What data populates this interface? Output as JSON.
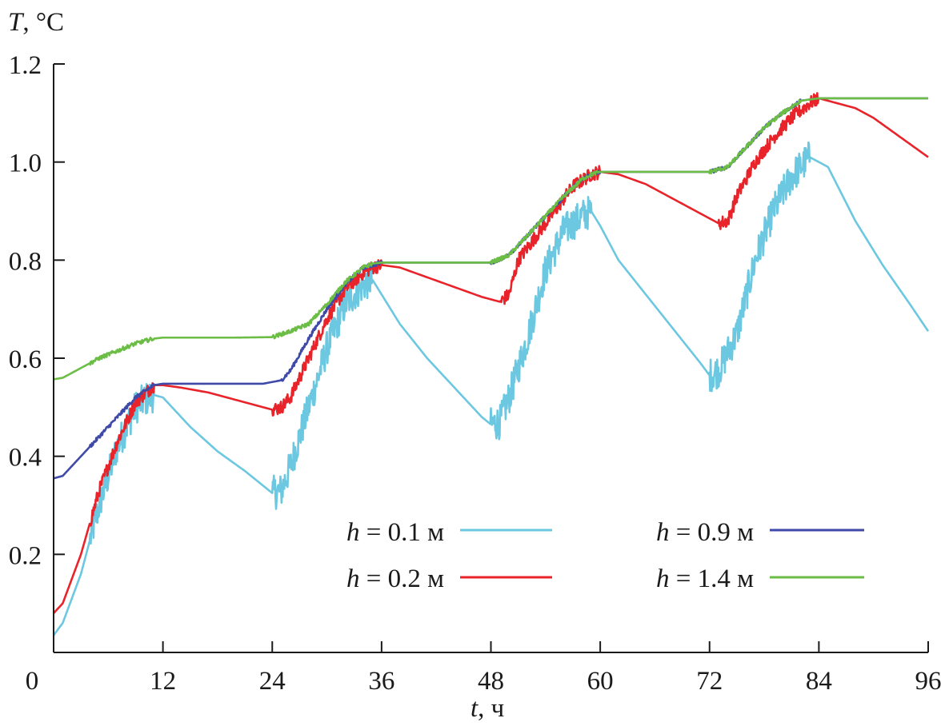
{
  "chart_data": {
    "type": "line",
    "title": "",
    "ylabel_var": "T",
    "ylabel_unit": ", °C",
    "xlabel_var": "t",
    "xlabel_unit": ", ч",
    "xlim": [
      0,
      96
    ],
    "ylim": [
      0,
      1.2
    ],
    "x_ticks": [
      0,
      12,
      24,
      36,
      48,
      60,
      72,
      84,
      96
    ],
    "x_tick_labels": [
      "0",
      "12",
      "24",
      "36",
      "48",
      "60",
      "72",
      "84",
      "96"
    ],
    "y_ticks": [
      0.2,
      0.4,
      0.6,
      0.8,
      1.0,
      1.2
    ],
    "y_tick_labels": [
      "0.2",
      "0.4",
      "0.6",
      "0.8",
      "1.0",
      "1.2"
    ],
    "grid": false,
    "legend_position": "bottom-right",
    "series": [
      {
        "name": "h = 0.1 м",
        "var": "h",
        "rest": " = 0.1 м",
        "color": "#6cc8e0",
        "noise": 0.035,
        "points": [
          [
            0,
            0.035
          ],
          [
            1,
            0.06
          ],
          [
            3,
            0.16
          ],
          [
            5,
            0.3
          ],
          [
            7,
            0.42
          ],
          [
            9,
            0.5
          ],
          [
            10,
            0.515
          ],
          [
            11,
            0.525
          ],
          [
            12,
            0.52
          ],
          [
            13,
            0.5
          ],
          [
            15,
            0.46
          ],
          [
            18,
            0.41
          ],
          [
            21,
            0.37
          ],
          [
            23,
            0.34
          ],
          [
            24,
            0.325
          ],
          [
            25,
            0.33
          ],
          [
            26,
            0.38
          ],
          [
            28,
            0.5
          ],
          [
            30,
            0.62
          ],
          [
            32,
            0.71
          ],
          [
            34,
            0.75
          ],
          [
            35,
            0.76
          ],
          [
            36,
            0.73
          ],
          [
            38,
            0.67
          ],
          [
            41,
            0.6
          ],
          [
            44,
            0.54
          ],
          [
            47,
            0.48
          ],
          [
            48,
            0.465
          ],
          [
            49,
            0.47
          ],
          [
            50,
            0.52
          ],
          [
            52,
            0.64
          ],
          [
            54,
            0.78
          ],
          [
            56,
            0.86
          ],
          [
            58,
            0.89
          ],
          [
            59,
            0.9
          ],
          [
            60,
            0.87
          ],
          [
            62,
            0.8
          ],
          [
            65,
            0.73
          ],
          [
            68,
            0.66
          ],
          [
            71,
            0.59
          ],
          [
            72,
            0.565
          ],
          [
            73,
            0.575
          ],
          [
            75,
            0.65
          ],
          [
            77,
            0.8
          ],
          [
            79,
            0.9
          ],
          [
            81,
            0.97
          ],
          [
            83,
            1.01
          ],
          [
            85,
            0.99
          ],
          [
            88,
            0.88
          ],
          [
            91,
            0.79
          ],
          [
            94,
            0.71
          ],
          [
            96,
            0.655
          ]
        ]
      },
      {
        "name": "h = 0.2 м",
        "var": "h",
        "rest": " = 0.2 м",
        "color": "#e8242a",
        "noise": 0.014,
        "points": [
          [
            0,
            0.08
          ],
          [
            1,
            0.1
          ],
          [
            3,
            0.2
          ],
          [
            5,
            0.33
          ],
          [
            7,
            0.43
          ],
          [
            9,
            0.51
          ],
          [
            11,
            0.545
          ],
          [
            12,
            0.545
          ],
          [
            14,
            0.54
          ],
          [
            17,
            0.53
          ],
          [
            20,
            0.515
          ],
          [
            23,
            0.5
          ],
          [
            24,
            0.495
          ],
          [
            25,
            0.5
          ],
          [
            26,
            0.52
          ],
          [
            28,
            0.6
          ],
          [
            30,
            0.68
          ],
          [
            32,
            0.74
          ],
          [
            34,
            0.775
          ],
          [
            35,
            0.785
          ],
          [
            36,
            0.79
          ],
          [
            38,
            0.785
          ],
          [
            41,
            0.765
          ],
          [
            44,
            0.745
          ],
          [
            47,
            0.725
          ],
          [
            49,
            0.715
          ],
          [
            50,
            0.73
          ],
          [
            51,
            0.8
          ],
          [
            53,
            0.85
          ],
          [
            55,
            0.9
          ],
          [
            57,
            0.95
          ],
          [
            59,
            0.975
          ],
          [
            60,
            0.98
          ],
          [
            62,
            0.975
          ],
          [
            65,
            0.955
          ],
          [
            68,
            0.925
          ],
          [
            71,
            0.895
          ],
          [
            73,
            0.875
          ],
          [
            74,
            0.88
          ],
          [
            75,
            0.93
          ],
          [
            77,
            1.0
          ],
          [
            79,
            1.05
          ],
          [
            81,
            1.09
          ],
          [
            83,
            1.12
          ],
          [
            84,
            1.13
          ],
          [
            86,
            1.12
          ],
          [
            88,
            1.11
          ],
          [
            90,
            1.09
          ],
          [
            93,
            1.05
          ],
          [
            96,
            1.01
          ]
        ]
      },
      {
        "name": "h = 0.9 м",
        "var": "h",
        "rest": " = 0.9 м",
        "color": "#3f4aa8",
        "noise": 0.004,
        "points": [
          [
            0,
            0.355
          ],
          [
            1,
            0.36
          ],
          [
            3,
            0.4
          ],
          [
            5,
            0.44
          ],
          [
            7,
            0.48
          ],
          [
            9,
            0.52
          ],
          [
            11,
            0.545
          ],
          [
            12,
            0.548
          ],
          [
            16,
            0.548
          ],
          [
            20,
            0.548
          ],
          [
            23,
            0.548
          ],
          [
            25,
            0.555
          ],
          [
            26,
            0.575
          ],
          [
            28,
            0.64
          ],
          [
            30,
            0.7
          ],
          [
            32,
            0.75
          ],
          [
            34,
            0.785
          ],
          [
            35,
            0.79
          ],
          [
            36,
            0.795
          ],
          [
            42,
            0.795
          ],
          [
            48,
            0.795
          ],
          [
            50,
            0.81
          ],
          [
            52,
            0.85
          ],
          [
            54,
            0.89
          ],
          [
            56,
            0.93
          ],
          [
            58,
            0.965
          ],
          [
            59,
            0.975
          ],
          [
            60,
            0.98
          ],
          [
            66,
            0.98
          ],
          [
            72,
            0.98
          ],
          [
            74,
            0.99
          ],
          [
            76,
            1.03
          ],
          [
            78,
            1.07
          ],
          [
            80,
            1.1
          ],
          [
            82,
            1.125
          ],
          [
            84,
            1.13
          ],
          [
            88,
            1.13
          ],
          [
            96,
            1.13
          ]
        ]
      },
      {
        "name": "h = 1.4 м",
        "var": "h",
        "rest": " = 1.4 м",
        "color": "#6cbd45",
        "noise": 0.004,
        "points": [
          [
            0,
            0.557
          ],
          [
            1,
            0.56
          ],
          [
            3,
            0.58
          ],
          [
            5,
            0.6
          ],
          [
            7,
            0.615
          ],
          [
            9,
            0.63
          ],
          [
            11,
            0.64
          ],
          [
            12,
            0.642
          ],
          [
            16,
            0.642
          ],
          [
            20,
            0.642
          ],
          [
            24,
            0.643
          ],
          [
            26,
            0.655
          ],
          [
            28,
            0.67
          ],
          [
            30,
            0.71
          ],
          [
            32,
            0.755
          ],
          [
            34,
            0.785
          ],
          [
            35,
            0.793
          ],
          [
            36,
            0.795
          ],
          [
            42,
            0.795
          ],
          [
            48,
            0.795
          ],
          [
            50,
            0.81
          ],
          [
            52,
            0.85
          ],
          [
            54,
            0.89
          ],
          [
            56,
            0.93
          ],
          [
            58,
            0.965
          ],
          [
            59,
            0.975
          ],
          [
            60,
            0.98
          ],
          [
            66,
            0.98
          ],
          [
            72,
            0.98
          ],
          [
            74,
            0.99
          ],
          [
            76,
            1.03
          ],
          [
            78,
            1.07
          ],
          [
            80,
            1.1
          ],
          [
            82,
            1.125
          ],
          [
            84,
            1.13
          ],
          [
            88,
            1.13
          ],
          [
            96,
            1.13
          ]
        ]
      }
    ]
  }
}
